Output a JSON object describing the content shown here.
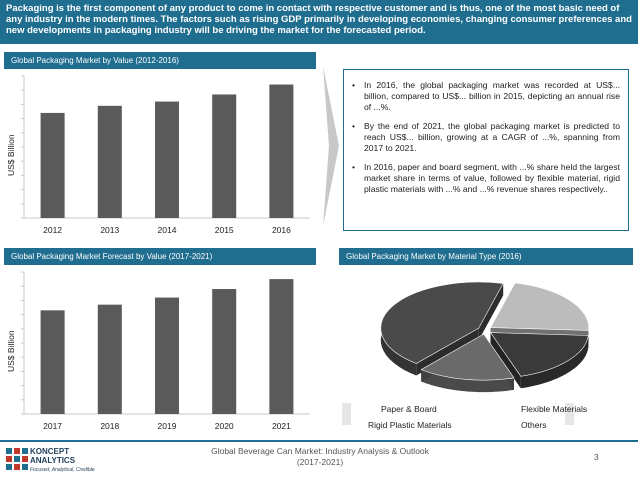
{
  "banner": {
    "text": "Packaging is the first component of any product to come in contact with respective customer and is thus, one of the most basic need of any industry in the modern times. The factors such as rising GDP primarily in developing economies, changing consumer preferences and new developments in packaging industry will be driving the market for the forecasted period."
  },
  "chart1": {
    "title": "Global Packaging Market by Value (2012-2016)",
    "ylabel": "US$ Billion"
  },
  "chart2": {
    "title": "Global Packaging Market Forecast by Value (2017-2021)",
    "ylabel": "US$ Billion"
  },
  "chart3": {
    "title": "Global Packaging Market by Material Type (2016)"
  },
  "insights": {
    "items": [
      "In 2016, the global packaging market was recorded at US$... billion, compared to US$... billion in 2015, depicting an annual rise of ...%.",
      "By the end of 2021, the global packaging market is predicted to reach US$... billion, growing at a CAGR of ...%, spanning from 2017 to 2021.",
      "In 2016, paper and board segment, with ...% share held the largest market share in terms of value, followed by flexible material, rigid plastic materials with ...% and ...% revenue shares respectively.."
    ]
  },
  "legend": {
    "paper_board": "Paper & Board",
    "flexible": "Flexible Materials",
    "rigid_plastic": "Rigid Plastic Materials",
    "others": "Others"
  },
  "footer": {
    "title": "Global Beverage Can Market: Industry Analysis & Outlook (2017-2021)",
    "page": "3",
    "logo_name_1": "KONCEPT",
    "logo_name_2": "ANALYTICS",
    "logo_tagline": "Focused, Analytical, Credible"
  },
  "colors": {
    "accent": "#1f6d8f",
    "bar": "#5a5a5a",
    "paper_board": "#4a4a4a",
    "flexible": "#bcbcbc",
    "rigid_plastic": "#3a3a3a",
    "others": "#6a6a6a"
  },
  "chart_data": [
    {
      "type": "bar",
      "title": "Global Packaging Market by Value (2012-2016)",
      "ylabel": "US$ Billion",
      "categories": [
        "2012",
        "2013",
        "2014",
        "2015",
        "2016"
      ],
      "values": [
        74,
        79,
        82,
        87,
        94
      ],
      "ylim": [
        0,
        100
      ]
    },
    {
      "type": "bar",
      "title": "Global Packaging Market Forecast by Value (2017-2021)",
      "ylabel": "US$ Billion",
      "categories": [
        "2017",
        "2018",
        "2019",
        "2020",
        "2021"
      ],
      "values": [
        73,
        77,
        82,
        88,
        95
      ],
      "ylim": [
        0,
        100
      ]
    },
    {
      "type": "pie",
      "title": "Global Packaging Market by Material Type (2016)",
      "categories": [
        "Paper & Board",
        "Flexible Materials",
        "Rigid Plastic Materials",
        "Others"
      ],
      "values": [
        43,
        22,
        19,
        16
      ]
    }
  ]
}
